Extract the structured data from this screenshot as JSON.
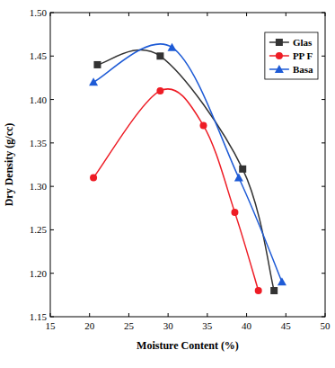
{
  "chart_data": {
    "type": "line",
    "x_label": "Moisture Content (%)",
    "y_label": "Dry Density (g/cc)",
    "xlim": [
      15,
      50
    ],
    "xticks": [
      15,
      20,
      25,
      30,
      35,
      40,
      45,
      50
    ],
    "ylim": [
      1.15,
      1.5
    ],
    "yticks": [
      1.15,
      {
        "value": 1.2,
        "label": "1.20"
      },
      1.25,
      {
        "value": 1.3,
        "label": "1.30"
      },
      1.35,
      {
        "value": 1.4,
        "label": "1.40"
      },
      1.45,
      {
        "value": 1.5,
        "label": "1.50"
      }
    ],
    "grid": false,
    "legend": "upper right",
    "series": [
      {
        "name": "Glas",
        "color": "#333333",
        "marker": "square",
        "line_style": "smooth",
        "x": [
          21,
          29,
          39.5,
          43.5
        ],
        "values": [
          1.44,
          1.45,
          1.32,
          1.18
        ]
      },
      {
        "name": "PP F",
        "color": "#ee1c25",
        "marker": "circle",
        "line_style": "smooth",
        "x": [
          20.5,
          29,
          34.5,
          38.5,
          41.5
        ],
        "values": [
          1.31,
          1.41,
          1.37,
          1.27,
          1.18
        ]
      },
      {
        "name": "Basa",
        "color": "#1e5bd6",
        "marker": "triangle",
        "line_style": "smooth",
        "x": [
          20.5,
          30.5,
          39,
          44.5
        ],
        "values": [
          1.42,
          1.46,
          1.31,
          1.19
        ]
      }
    ]
  }
}
